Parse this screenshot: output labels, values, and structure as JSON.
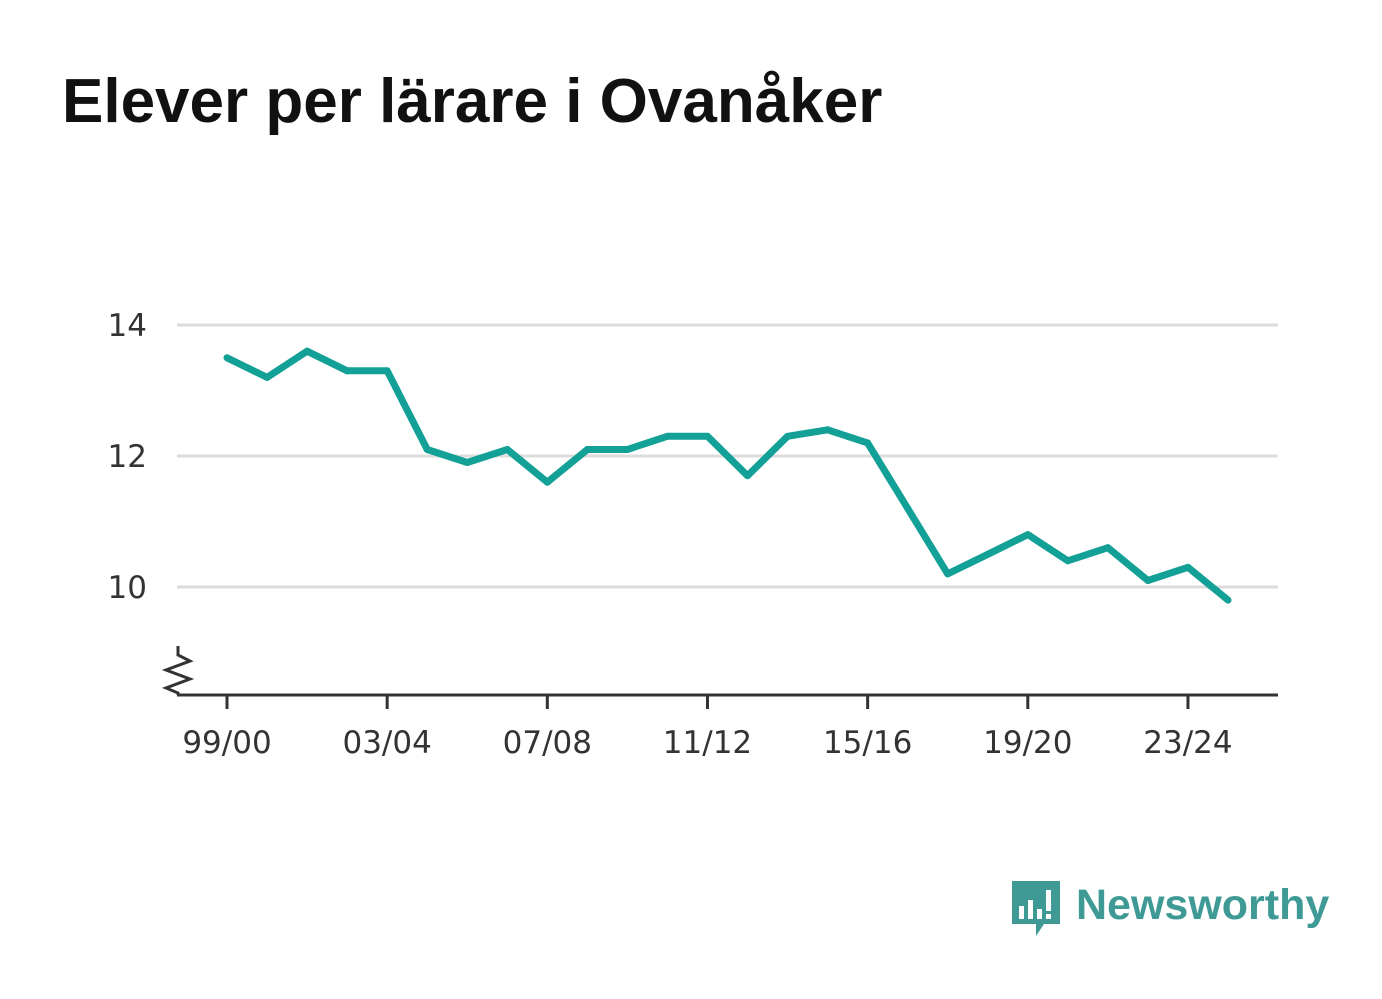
{
  "title": "Elever per lärare i Ovanåker",
  "brand": {
    "name": "Newsworthy",
    "color": "#3f9a95",
    "icon": "bar-chart-speech-bubble-icon"
  },
  "colors": {
    "line": "#13a096",
    "grid": "#dcdcdc",
    "axis": "#333333",
    "text": "#333333"
  },
  "chart_data": {
    "type": "line",
    "title": "Elever per lärare i Ovanåker",
    "xlabel": "",
    "ylabel": "",
    "x": [
      "99/00",
      "00/01",
      "01/02",
      "02/03",
      "03/04",
      "04/05",
      "05/06",
      "06/07",
      "07/08",
      "08/09",
      "09/10",
      "10/11",
      "11/12",
      "12/13",
      "13/14",
      "14/15",
      "15/16",
      "16/17",
      "17/18",
      "18/19",
      "19/20",
      "20/21",
      "21/22",
      "22/23",
      "23/24",
      "24/25"
    ],
    "values": [
      13.5,
      13.2,
      13.6,
      13.3,
      13.3,
      12.1,
      11.9,
      12.1,
      11.6,
      12.1,
      12.1,
      12.3,
      12.3,
      11.7,
      12.3,
      12.4,
      12.2,
      11.2,
      10.2,
      10.5,
      10.8,
      10.4,
      10.6,
      10.1,
      10.3,
      9.8
    ],
    "x_tick_labels": [
      "99/00",
      "03/04",
      "07/08",
      "11/12",
      "15/16",
      "19/20",
      "23/24"
    ],
    "y_ticks": [
      10,
      12,
      14
    ],
    "ylim": [
      8.35,
      14.6
    ],
    "grid": true,
    "axis_break": true,
    "legend": "none"
  }
}
